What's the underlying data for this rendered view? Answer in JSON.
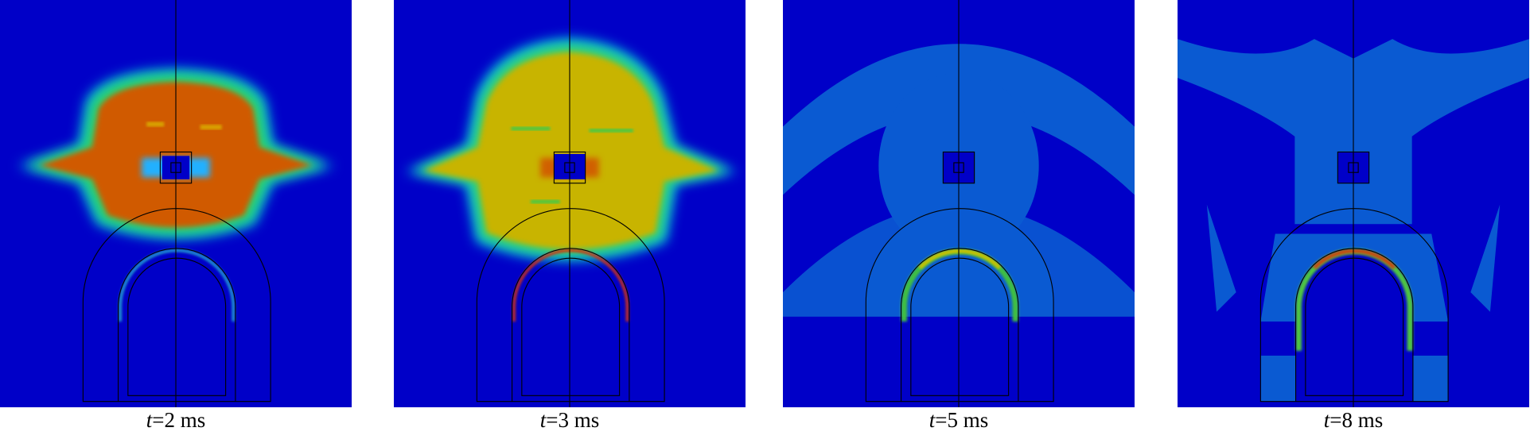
{
  "panels": [
    {
      "caption": {
        "variable": "t",
        "rest": "=2 ms"
      }
    },
    {
      "caption": {
        "variable": "t",
        "rest": "=3 ms"
      }
    },
    {
      "caption": {
        "variable": "t",
        "rest": "=5 ms"
      }
    },
    {
      "caption": {
        "variable": "t",
        "rest": "=8 ms"
      }
    }
  ]
}
